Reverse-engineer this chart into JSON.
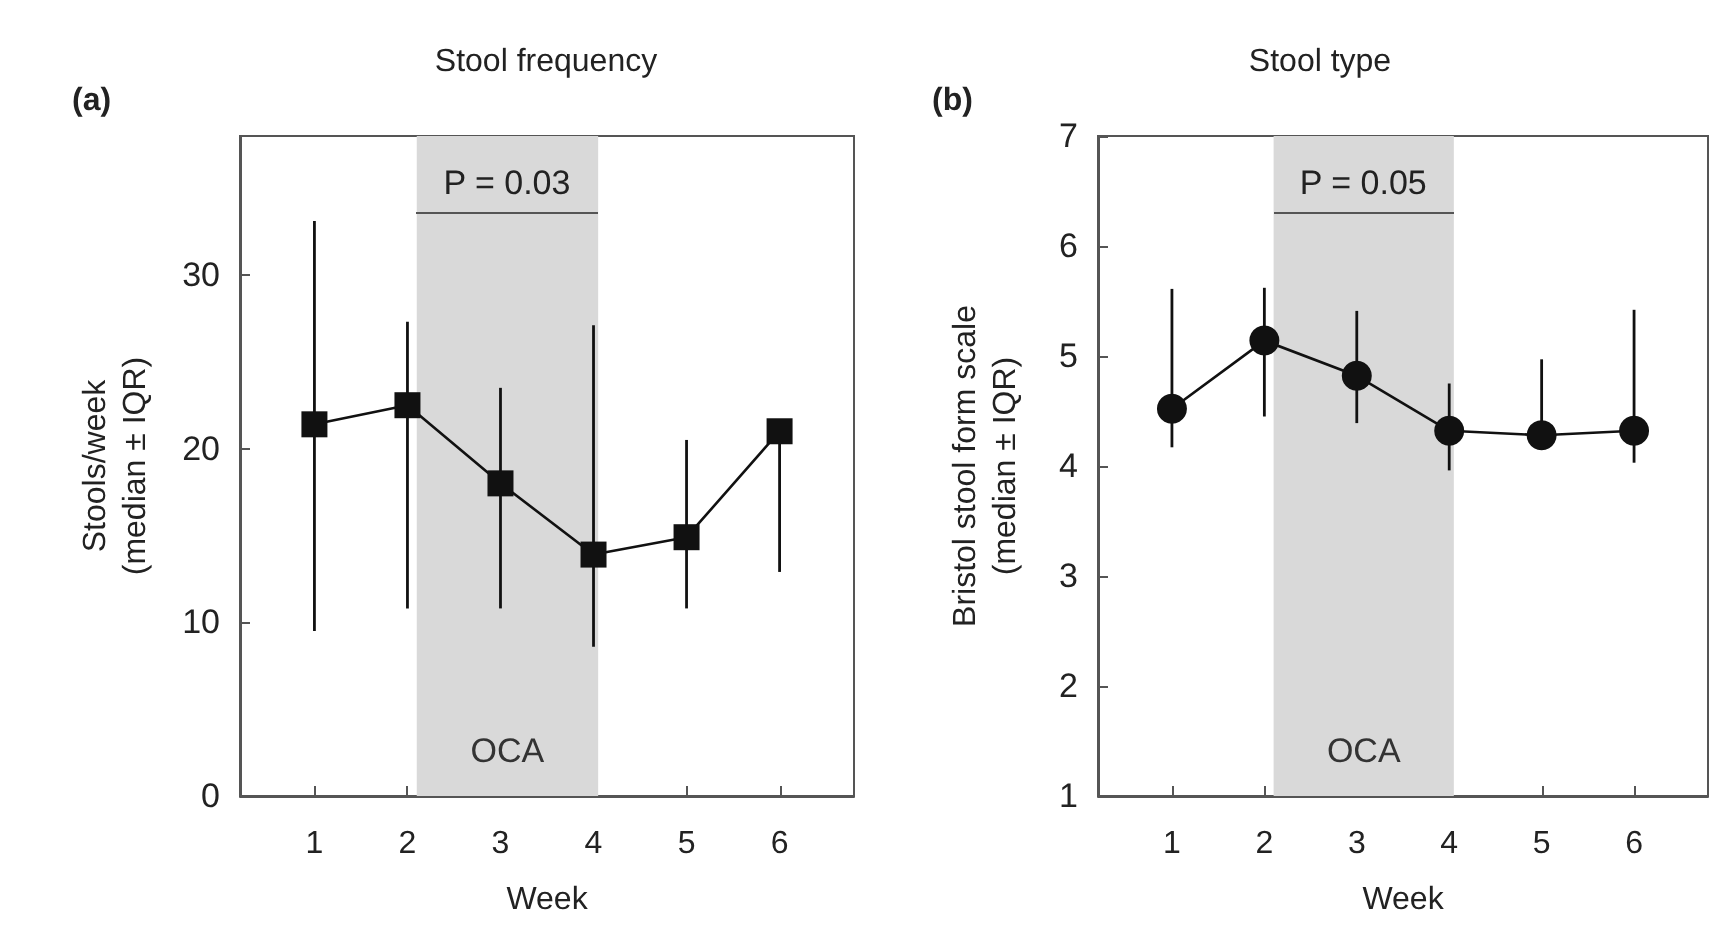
{
  "chart_data": [
    {
      "type": "line",
      "title": "Stool frequency",
      "xlabel": "Week",
      "ylabel": "Stools/week\n(median ± IQR)",
      "annotations": [
        "(a)",
        "P = 0.03"
      ],
      "x": [
        1,
        2,
        3,
        4,
        5,
        6
      ],
      "xlim": [
        0.2,
        6.8
      ],
      "xticks": [
        1,
        2,
        3,
        4,
        5,
        6
      ],
      "ylim": [
        0,
        38
      ],
      "yticks": [
        0,
        10,
        20,
        30
      ],
      "values": [
        21.4,
        22.5,
        18.0,
        13.9,
        14.9,
        21.0
      ],
      "color": "#111111",
      "marker": "square",
      "errors": [
        [
          9.5,
          33.1
        ],
        [
          10.8,
          27.3
        ],
        [
          10.8,
          23.5
        ],
        [
          8.6,
          27.1
        ],
        [
          10.8,
          20.5
        ],
        [
          12.9,
          21.0
        ]
      ],
      "bands": [
        {
          "axis": "x",
          "from": 2.1,
          "to": 4.05,
          "label": "OCA",
          "color": "#d9d9d9"
        }
      ]
    },
    {
      "type": "line",
      "title": "Stool type",
      "xlabel": "Week",
      "ylabel": "Bristol stool form scale\n(median ± IQR)",
      "annotations": [
        "(b)",
        "P = 0.05"
      ],
      "x": [
        1,
        2,
        3,
        4,
        5,
        6
      ],
      "xlim": [
        0.2,
        6.8
      ],
      "xticks": [
        1,
        2,
        3,
        4,
        5,
        6
      ],
      "ylim": [
        1,
        7
      ],
      "yticks": [
        1,
        2,
        3,
        4,
        5,
        6,
        7
      ],
      "values": [
        4.52,
        5.14,
        4.82,
        4.32,
        4.28,
        4.32
      ],
      "color": "#111111",
      "marker": "circle",
      "errors": [
        [
          4.17,
          5.61
        ],
        [
          4.45,
          5.62
        ],
        [
          4.39,
          5.41
        ],
        [
          3.96,
          4.75
        ],
        [
          4.28,
          4.97
        ],
        [
          4.03,
          5.42
        ]
      ],
      "bands": [
        {
          "axis": "x",
          "from": 2.1,
          "to": 4.05,
          "label": "OCA",
          "color": "#d9d9d9"
        }
      ]
    }
  ]
}
